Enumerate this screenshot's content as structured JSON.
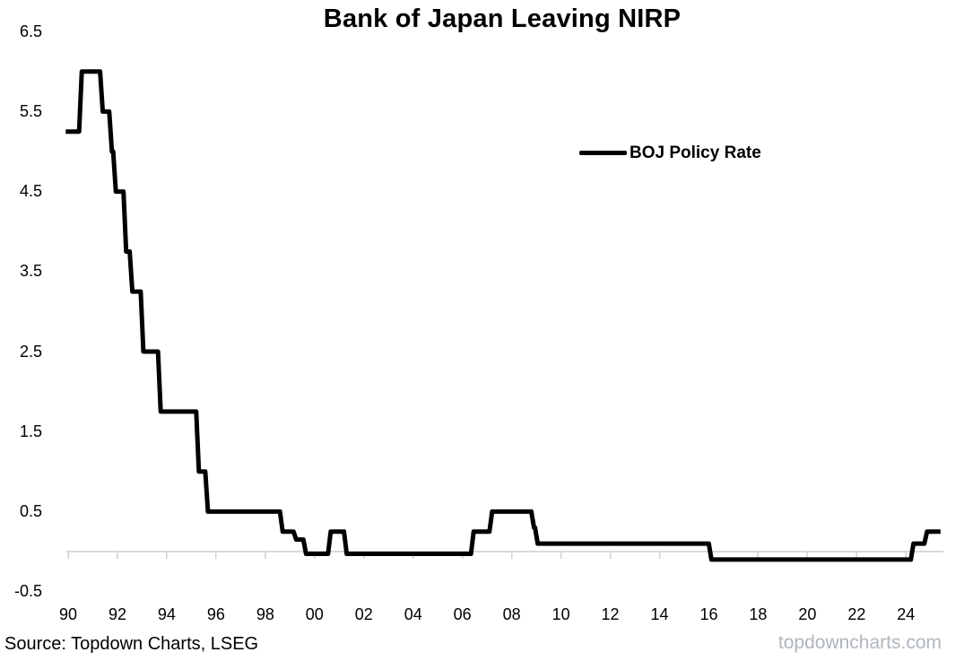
{
  "chart_data": {
    "type": "line",
    "title": "Bank of Japan Leaving NIRP",
    "xlabel": "",
    "ylabel": "",
    "grid": false,
    "legend": {
      "label": "BOJ Policy Rate",
      "position": "upper-right-inside"
    },
    "x_axis": {
      "tick_labels": [
        "90",
        "92",
        "94",
        "96",
        "98",
        "00",
        "02",
        "04",
        "06",
        "08",
        "10",
        "12",
        "14",
        "16",
        "18",
        "20",
        "22",
        "24"
      ],
      "tick_years": [
        1990,
        1992,
        1994,
        1996,
        1998,
        2000,
        2002,
        2004,
        2006,
        2008,
        2010,
        2012,
        2014,
        2016,
        2018,
        2020,
        2022,
        2024
      ],
      "range_years": [
        1989.9,
        2025.4
      ]
    },
    "y_axis": {
      "tick_labels": [
        "6.5",
        "5.5",
        "4.5",
        "3.5",
        "2.5",
        "1.5",
        "0.5",
        "-0.5"
      ],
      "tick_values": [
        6.5,
        5.5,
        4.5,
        3.5,
        2.5,
        1.5,
        0.5,
        -0.5
      ],
      "ylim": [
        -0.5,
        6.5
      ],
      "unit": "%"
    },
    "axis_line_color": "#d9d9d9",
    "tick_color": "#d2d2d2",
    "series": [
      {
        "name": "BOJ Policy Rate",
        "color": "#000000",
        "style": "step",
        "step_points": [
          [
            1989.9,
            5.25
          ],
          [
            1990.5,
            6.0
          ],
          [
            1991.35,
            5.5
          ],
          [
            1991.72,
            5.0
          ],
          [
            1991.88,
            4.5
          ],
          [
            1992.3,
            3.75
          ],
          [
            1992.55,
            3.25
          ],
          [
            1993.0,
            2.5
          ],
          [
            1993.7,
            1.75
          ],
          [
            1995.25,
            1.0
          ],
          [
            1995.62,
            0.5
          ],
          [
            1998.65,
            0.25
          ],
          [
            1999.2,
            0.15
          ],
          [
            1999.6,
            0.0
          ],
          [
            2000.6,
            0.25
          ],
          [
            2001.25,
            0.0
          ],
          [
            2006.4,
            0.25
          ],
          [
            2007.15,
            0.5
          ],
          [
            2008.85,
            0.3
          ],
          [
            2009.0,
            0.1
          ],
          [
            2016.05,
            -0.1
          ],
          [
            2024.25,
            0.1
          ],
          [
            2024.8,
            0.25
          ]
        ],
        "end_year": 2025.4
      }
    ]
  },
  "footer": {
    "source": "Source: Topdown Charts, LSEG",
    "watermark": "topdowncharts.com"
  }
}
